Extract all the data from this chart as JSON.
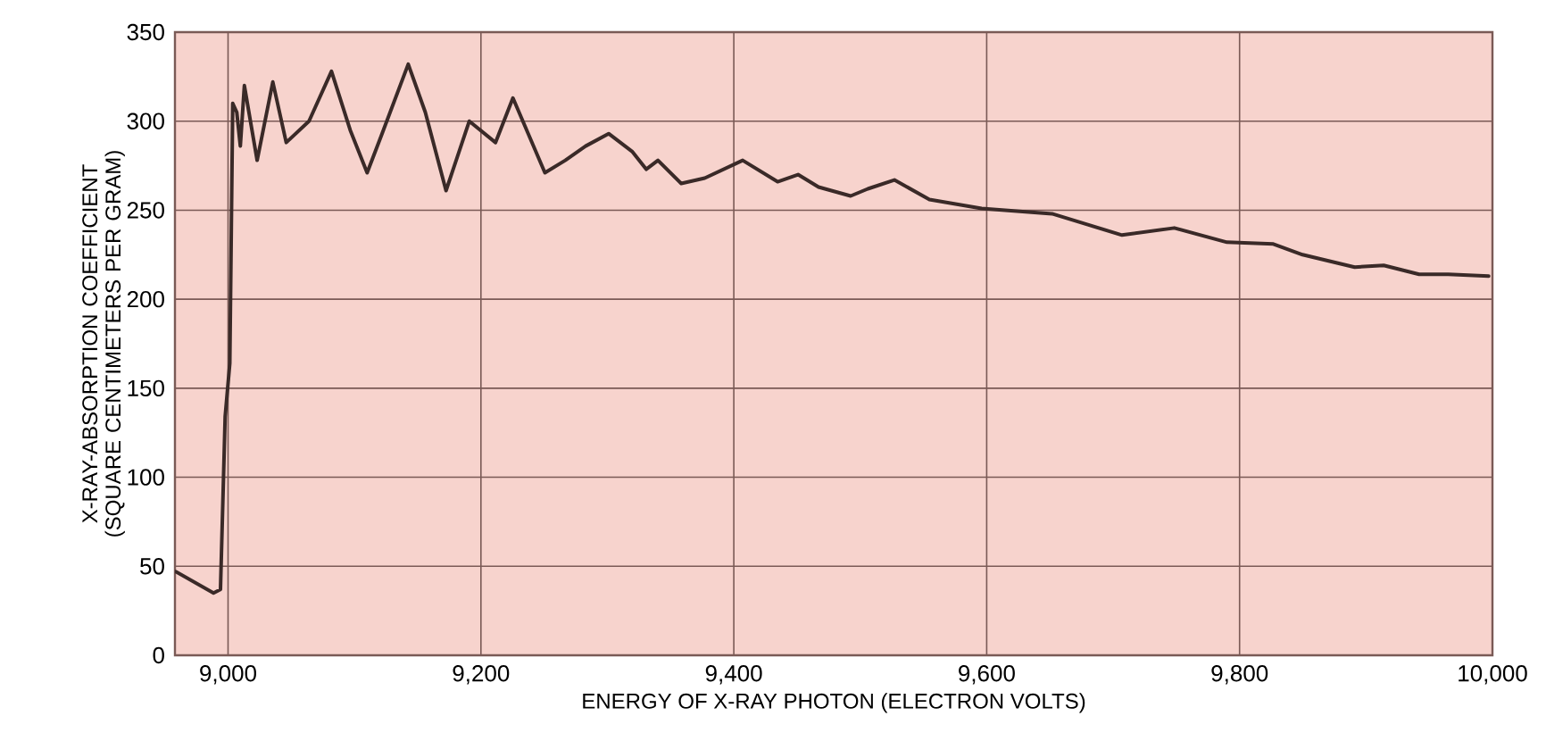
{
  "chart_data": {
    "type": "line",
    "xlabel": "ENERGY OF X-RAY PHOTON (ELECTRON VOLTS)",
    "ylabel": "X-RAY-ABSORPTION COEFFICIENT (SQUARE CENTIMETERS PER GRAM)",
    "x": [
      8958.6,
      8988.5,
      8994,
      8997.7,
      9001.4,
      9003.7,
      9006.9,
      9009.7,
      9012.9,
      9023,
      9035.4,
      9046,
      9064,
      9081.8,
      9096.6,
      9110,
      9121.8,
      9142.5,
      9156,
      9172.4,
      9190.8,
      9211.5,
      9225.3,
      9250.6,
      9266.7,
      9282.8,
      9301,
      9319.5,
      9330.7,
      9340,
      9358.4,
      9377,
      9407,
      9434.6,
      9450.8,
      9467,
      9492.4,
      9506,
      9527,
      9554.7,
      9596,
      9651.7,
      9679.4,
      9707,
      9748.4,
      9790,
      9826.7,
      9849.8,
      9891,
      9914,
      9942,
      9965,
      9997
    ],
    "series": [
      {
        "color": "#3a2a28",
        "line_style": "solid",
        "values": [
          47,
          35,
          37,
          134,
          164,
          310,
          305,
          286,
          320,
          278,
          322,
          288,
          300,
          328,
          295,
          271,
          293,
          332,
          305,
          261,
          300,
          288,
          313,
          271,
          278,
          286,
          293,
          283,
          273,
          278,
          265,
          268,
          278,
          266,
          270,
          263,
          258,
          262,
          267,
          256,
          251,
          248,
          242,
          236,
          240,
          232,
          231,
          225,
          218,
          219,
          214,
          214,
          213
        ]
      }
    ],
    "xlim": [
      8958,
      10000
    ],
    "ylim": [
      0,
      350
    ],
    "xticks": [
      {
        "value": 9000,
        "label": "9,000"
      },
      {
        "value": 9200,
        "label": "9,200"
      },
      {
        "value": 9400,
        "label": "9,400"
      },
      {
        "value": 9600,
        "label": "9,600"
      },
      {
        "value": 9800,
        "label": "9,800"
      },
      {
        "value": 10000,
        "label": "10,000"
      }
    ],
    "yticks": [
      0,
      50,
      100,
      150,
      200,
      250,
      300,
      350
    ],
    "grid": true
  }
}
